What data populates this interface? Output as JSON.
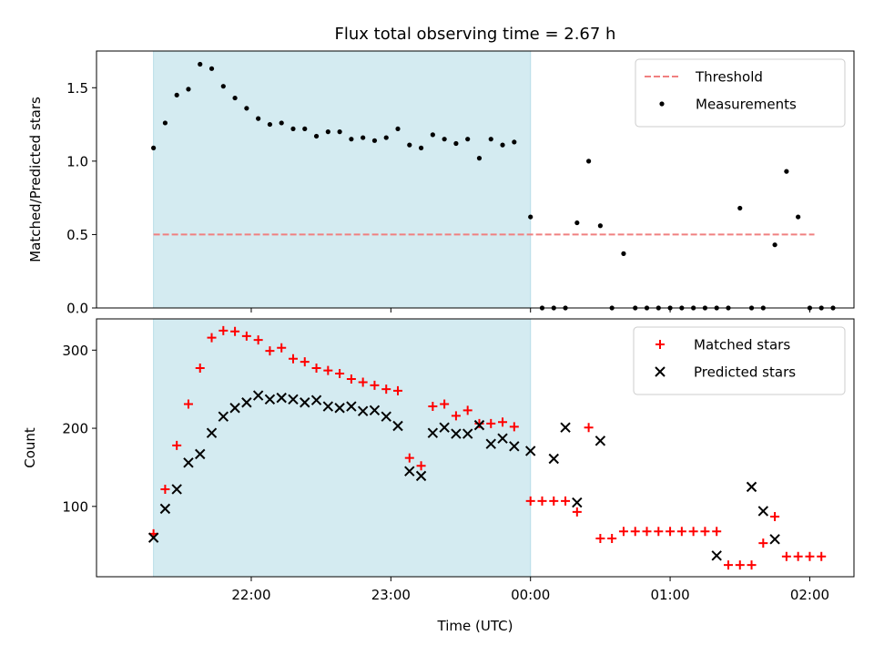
{
  "chart_data": [
    {
      "type": "scatter",
      "title": "Flux total observing time = 2.67 h",
      "xlabel": "",
      "ylabel": "Matched/Predicted stars",
      "ylim": [
        0,
        1.75
      ],
      "yticks": [
        0.0,
        0.5,
        1.0,
        1.5
      ],
      "ytick_labels": [
        "0.0",
        "0.5",
        "1.0",
        "1.5"
      ],
      "x_axis": "time (UTC), shared with lower panel",
      "legend_position": "top-right",
      "shaded_interval": {
        "start": "21:18",
        "end": "00:00",
        "color": "#d4ebf1"
      },
      "threshold": {
        "name": "Threshold",
        "value": 0.5,
        "start": "21:18",
        "end": "02:02",
        "color": "#f08080",
        "style": "dashed"
      },
      "series": [
        {
          "name": "Measurements",
          "color": "#000000",
          "marker": "dot",
          "points": [
            [
              "21:18",
              1.09
            ],
            [
              "21:23",
              1.26
            ],
            [
              "21:28",
              1.45
            ],
            [
              "21:33",
              1.49
            ],
            [
              "21:38",
              1.66
            ],
            [
              "21:43",
              1.63
            ],
            [
              "21:48",
              1.51
            ],
            [
              "21:53",
              1.43
            ],
            [
              "21:58",
              1.36
            ],
            [
              "22:03",
              1.29
            ],
            [
              "22:08",
              1.25
            ],
            [
              "22:13",
              1.26
            ],
            [
              "22:18",
              1.22
            ],
            [
              "22:23",
              1.22
            ],
            [
              "22:28",
              1.17
            ],
            [
              "22:33",
              1.2
            ],
            [
              "22:38",
              1.2
            ],
            [
              "22:43",
              1.15
            ],
            [
              "22:48",
              1.16
            ],
            [
              "22:53",
              1.14
            ],
            [
              "22:58",
              1.16
            ],
            [
              "23:03",
              1.22
            ],
            [
              "23:08",
              1.11
            ],
            [
              "23:13",
              1.09
            ],
            [
              "23:18",
              1.18
            ],
            [
              "23:23",
              1.15
            ],
            [
              "23:28",
              1.12
            ],
            [
              "23:33",
              1.15
            ],
            [
              "23:38",
              1.02
            ],
            [
              "23:43",
              1.15
            ],
            [
              "23:48",
              1.11
            ],
            [
              "23:53",
              1.13
            ],
            [
              "00:00",
              0.62
            ],
            [
              "00:05",
              0.0
            ],
            [
              "00:10",
              0.0
            ],
            [
              "00:15",
              0.0
            ],
            [
              "00:20",
              0.58
            ],
            [
              "00:25",
              1.0
            ],
            [
              "00:30",
              0.56
            ],
            [
              "00:35",
              0.0
            ],
            [
              "00:40",
              0.37
            ],
            [
              "00:45",
              0.0
            ],
            [
              "00:50",
              0.0
            ],
            [
              "00:55",
              0.0
            ],
            [
              "01:00",
              0.0
            ],
            [
              "01:05",
              0.0
            ],
            [
              "01:10",
              0.0
            ],
            [
              "01:15",
              0.0
            ],
            [
              "01:20",
              0.0
            ],
            [
              "01:25",
              0.0
            ],
            [
              "01:30",
              0.68
            ],
            [
              "01:35",
              0.0
            ],
            [
              "01:40",
              0.0
            ],
            [
              "01:45",
              0.43
            ],
            [
              "01:50",
              0.93
            ],
            [
              "01:55",
              0.62
            ],
            [
              "02:00",
              0.0
            ],
            [
              "02:05",
              0.0
            ],
            [
              "02:10",
              0.0
            ]
          ]
        }
      ]
    },
    {
      "type": "scatter",
      "title": "",
      "xlabel": "Time (UTC)",
      "ylabel": "Count",
      "ylim": [
        10,
        340
      ],
      "yticks": [
        100,
        200,
        300
      ],
      "ytick_labels": [
        "100",
        "200",
        "300"
      ],
      "xticks": [
        "22:00",
        "23:00",
        "00:00",
        "01:00",
        "02:00"
      ],
      "xtick_labels": [
        "22:00",
        "23:00",
        "00:00",
        "01:00",
        "02:00"
      ],
      "legend_position": "top-right",
      "shaded_interval": {
        "start": "21:18",
        "end": "00:00",
        "color": "#d4ebf1"
      },
      "series": [
        {
          "name": "Matched stars",
          "color": "#ff0000",
          "marker": "plus",
          "points": [
            [
              "21:18",
              65
            ],
            [
              "21:23",
              122
            ],
            [
              "21:28",
              178
            ],
            [
              "21:33",
              231
            ],
            [
              "21:38",
              277
            ],
            [
              "21:43",
              316
            ],
            [
              "21:48",
              325
            ],
            [
              "21:53",
              324
            ],
            [
              "21:58",
              318
            ],
            [
              "22:03",
              313
            ],
            [
              "22:08",
              299
            ],
            [
              "22:13",
              303
            ],
            [
              "22:18",
              289
            ],
            [
              "22:23",
              285
            ],
            [
              "22:28",
              277
            ],
            [
              "22:33",
              274
            ],
            [
              "22:38",
              270
            ],
            [
              "22:43",
              263
            ],
            [
              "22:48",
              259
            ],
            [
              "22:53",
              255
            ],
            [
              "22:58",
              250
            ],
            [
              "23:03",
              248
            ],
            [
              "23:08",
              162
            ],
            [
              "23:13",
              152
            ],
            [
              "23:18",
              228
            ],
            [
              "23:23",
              231
            ],
            [
              "23:28",
              216
            ],
            [
              "23:33",
              223
            ],
            [
              "23:38",
              206
            ],
            [
              "23:43",
              206
            ],
            [
              "23:48",
              208
            ],
            [
              "23:53",
              202
            ],
            [
              "00:00",
              107
            ],
            [
              "00:05",
              107
            ],
            [
              "00:10",
              107
            ],
            [
              "00:15",
              107
            ],
            [
              "00:20",
              93
            ],
            [
              "00:25",
              201
            ],
            [
              "00:30",
              59
            ],
            [
              "00:35",
              59
            ],
            [
              "00:40",
              68
            ],
            [
              "00:45",
              68
            ],
            [
              "00:50",
              68
            ],
            [
              "00:55",
              68
            ],
            [
              "01:00",
              68
            ],
            [
              "01:05",
              68
            ],
            [
              "01:10",
              68
            ],
            [
              "01:15",
              68
            ],
            [
              "01:20",
              68
            ],
            [
              "01:25",
              25
            ],
            [
              "01:30",
              25
            ],
            [
              "01:35",
              25
            ],
            [
              "01:40",
              53
            ],
            [
              "01:45",
              87
            ],
            [
              "01:50",
              36
            ],
            [
              "01:55",
              36
            ],
            [
              "02:00",
              36
            ],
            [
              "02:05",
              36
            ]
          ]
        },
        {
          "name": "Predicted stars",
          "color": "#000000",
          "marker": "x",
          "points": [
            [
              "21:18",
              60
            ],
            [
              "21:23",
              97
            ],
            [
              "21:28",
              122
            ],
            [
              "21:33",
              156
            ],
            [
              "21:38",
              167
            ],
            [
              "21:43",
              194
            ],
            [
              "21:48",
              215
            ],
            [
              "21:53",
              226
            ],
            [
              "21:58",
              233
            ],
            [
              "22:03",
              242
            ],
            [
              "22:08",
              237
            ],
            [
              "22:13",
              239
            ],
            [
              "22:18",
              237
            ],
            [
              "22:23",
              233
            ],
            [
              "22:28",
              236
            ],
            [
              "22:33",
              228
            ],
            [
              "22:38",
              226
            ],
            [
              "22:43",
              228
            ],
            [
              "22:48",
              222
            ],
            [
              "22:53",
              223
            ],
            [
              "22:58",
              215
            ],
            [
              "23:03",
              203
            ],
            [
              "23:08",
              145
            ],
            [
              "23:13",
              139
            ],
            [
              "23:18",
              194
            ],
            [
              "23:23",
              201
            ],
            [
              "23:28",
              193
            ],
            [
              "23:33",
              193
            ],
            [
              "23:38",
              204
            ],
            [
              "23:43",
              180
            ],
            [
              "23:48",
              187
            ],
            [
              "23:53",
              177
            ],
            [
              "00:00",
              171
            ],
            [
              "00:10",
              161
            ],
            [
              "00:15",
              201
            ],
            [
              "00:20",
              105
            ],
            [
              "00:30",
              184
            ],
            [
              "01:20",
              37
            ],
            [
              "01:35",
              125
            ],
            [
              "01:40",
              94
            ],
            [
              "01:45",
              58
            ]
          ]
        }
      ]
    }
  ]
}
